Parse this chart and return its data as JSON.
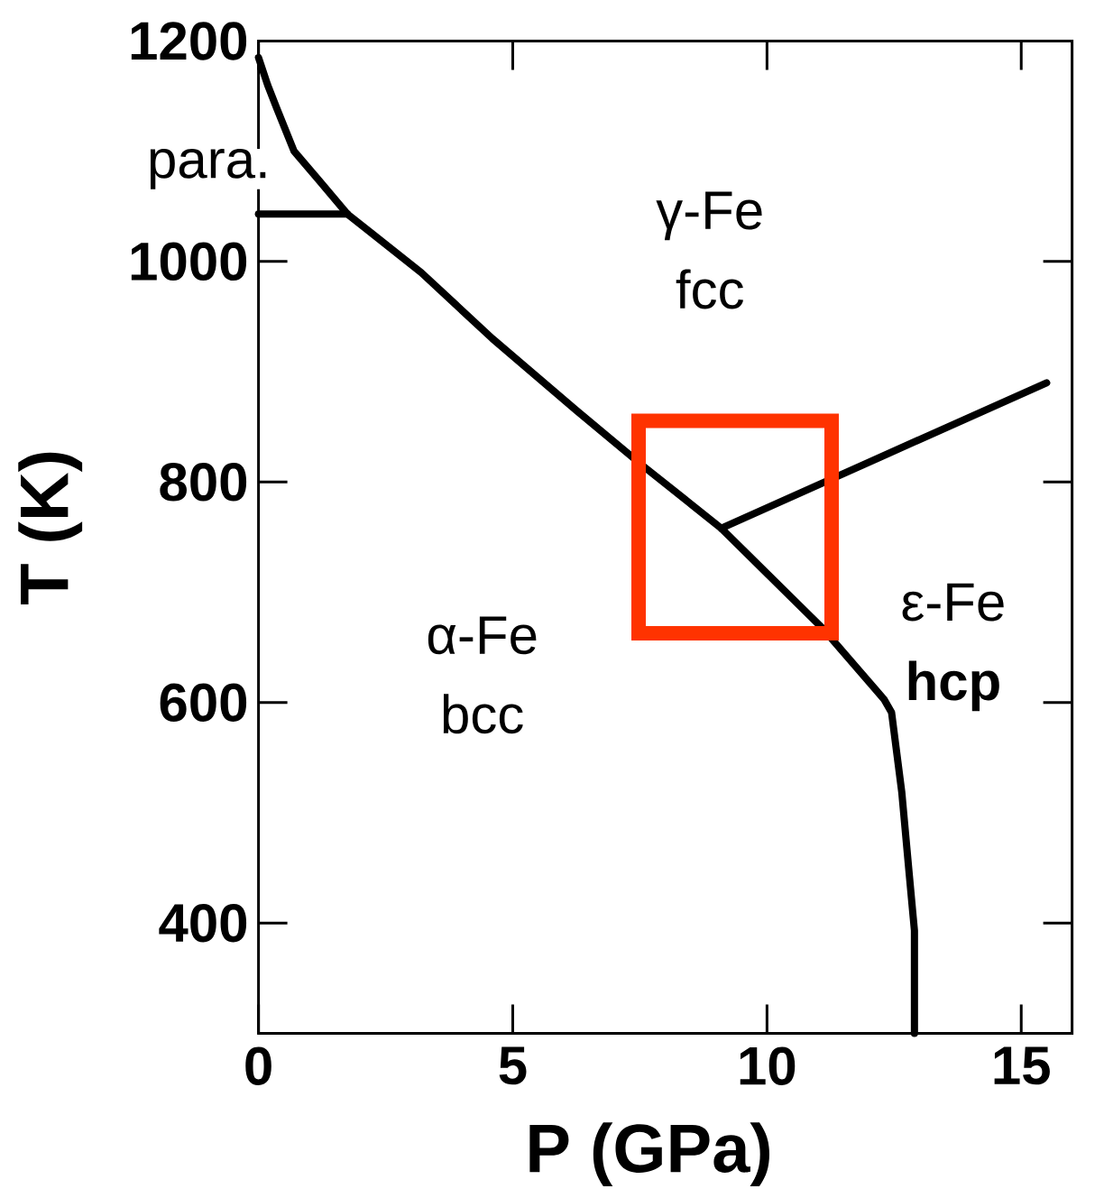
{
  "chart_data": {
    "type": "line",
    "xlabel": "P (GPa)",
    "ylabel": "T (K)",
    "xlim": [
      0,
      16
    ],
    "ylim": [
      300,
      1200
    ],
    "xticks": [
      0,
      5,
      10,
      15
    ],
    "yticks": [
      400,
      600,
      800,
      1000,
      1200
    ],
    "marker": "none",
    "line_style": "solid",
    "series": [
      {
        "color": "#000000",
        "x": [
          0,
          0.18,
          0.35,
          0.7,
          1.2,
          1.75,
          3.2,
          4.6,
          6.25,
          7.55,
          9.1,
          11.1,
          12.3,
          12.45,
          12.65,
          12.8,
          12.9,
          12.9
        ],
        "values": [
          1185,
          1160,
          1140,
          1100,
          1073,
          1043,
          990,
          930,
          865,
          815,
          758,
          667,
          603,
          591,
          519,
          443,
          393,
          300
        ]
      },
      {
        "color": "#000000",
        "x": [
          0,
          1.75
        ],
        "values": [
          1043,
          1043
        ]
      },
      {
        "color": "#000000",
        "x": [
          9.1,
          15.5
        ],
        "values": [
          758,
          890
        ]
      }
    ],
    "annotations": [
      "para.",
      "γ-Fe fcc",
      "α-Fe bcc",
      "ε-Fe **hcp**"
    ]
  }
}
